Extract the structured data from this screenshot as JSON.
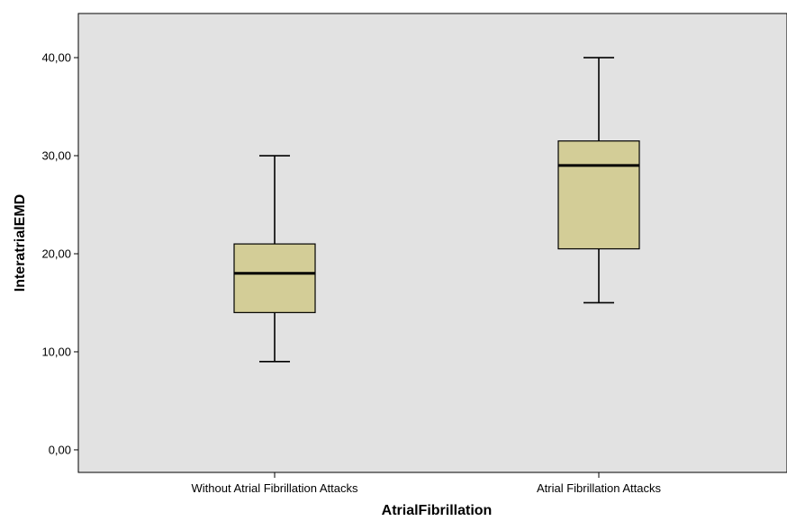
{
  "chart_data": {
    "type": "boxplot",
    "xlabel": "AtrialFibrillation",
    "ylabel": "InteratrialEMD",
    "ylim": [
      -2.3,
      44.5
    ],
    "yticks": [
      0,
      10,
      20,
      30,
      40
    ],
    "ytick_labels": [
      "0,00",
      "10,00",
      "20,00",
      "30,00",
      "40,00"
    ],
    "categories": [
      "Without Atrial Fibrillation Attacks",
      "Atrial Fibrillation Attacks"
    ],
    "boxes": [
      {
        "category": "Without Atrial Fibrillation Attacks",
        "whisker_low": 9,
        "q1": 14,
        "median": 18,
        "q3": 21,
        "whisker_high": 30
      },
      {
        "category": "Atrial Fibrillation Attacks",
        "whisker_low": 15,
        "q1": 20.5,
        "median": 29,
        "q3": 31.5,
        "whisker_high": 40
      }
    ],
    "grid": false,
    "colors": {
      "plot_background": "#e2e2e2",
      "box_fill": "#d3cd97",
      "stroke": "#000000"
    }
  }
}
